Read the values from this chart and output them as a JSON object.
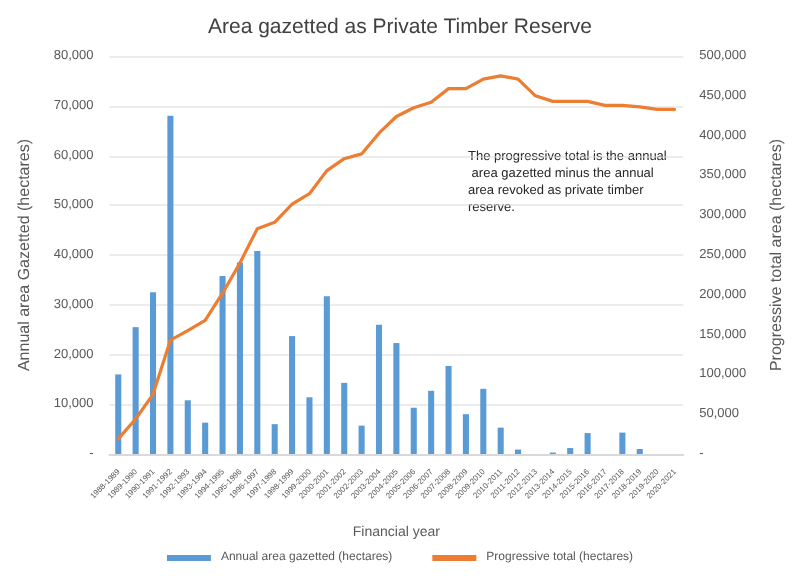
{
  "chart_data": {
    "type": "bar",
    "title": "Area gazetted as Private Timber Reserve",
    "xlabel": "Financial year",
    "ylabel": "Annual area Gazetted (hectares)",
    "y2label": "Progressive total area (hectares)",
    "categories": [
      "1988-1989",
      "1989-1990",
      "1990-1991",
      "1991-1992",
      "1992-1993",
      "1993-1994",
      "1994-1995",
      "1995-1996",
      "1996-1997",
      "1997-1998",
      "1998-1999",
      "1999-2000",
      "2000-2001",
      "2001-2002",
      "2002-2003",
      "2003-2004",
      "2004-2005",
      "2005-2006",
      "2006-2007",
      "2007-2008",
      "2008-2009",
      "2009-2010",
      "2010-2011",
      "2011-2012",
      "2012-2013",
      "2013-2014",
      "2014-2015",
      "2015-2016",
      "2016-2017",
      "2017-2018",
      "2018-2019",
      "2019-2020",
      "2020-2021"
    ],
    "series": [
      {
        "name": "Annual area gazetted (hectares)",
        "color": "#5b9bd5",
        "values": [
          16000,
          25500,
          32500,
          68000,
          10800,
          6300,
          35800,
          38500,
          40800,
          6000,
          23700,
          11400,
          31700,
          14300,
          5700,
          26000,
          22300,
          9300,
          12700,
          17700,
          8000,
          13100,
          5300,
          900,
          0,
          300,
          1200,
          4200,
          0,
          4300,
          1000,
          0,
          0
        ]
      },
      {
        "name": "Progressive total (hectares)",
        "type": "line",
        "axis": "y2",
        "color": "#ed7d31",
        "values": [
          19000,
          44000,
          75000,
          143000,
          155000,
          168000,
          202000,
          240000,
          283000,
          291000,
          314000,
          327000,
          356000,
          371000,
          377000,
          403000,
          424000,
          435000,
          442000,
          459000,
          459000,
          471000,
          475000,
          471000,
          450000,
          443000,
          443000,
          443000,
          438000,
          438000,
          436000,
          433000,
          433000
        ]
      }
    ],
    "ylim": [
      0,
      80000
    ],
    "yticks": [
      {
        "value": 0,
        "label": "-"
      },
      {
        "value": 10000,
        "label": "10,000"
      },
      {
        "value": 20000,
        "label": "20,000"
      },
      {
        "value": 30000,
        "label": "30,000"
      },
      {
        "value": 40000,
        "label": "40,000"
      },
      {
        "value": 50000,
        "label": "50,000"
      },
      {
        "value": 60000,
        "label": "60,000"
      },
      {
        "value": 70000,
        "label": "70,000"
      },
      {
        "value": 80000,
        "label": "80,000"
      }
    ],
    "y2lim": [
      0,
      500000
    ],
    "y2ticks": [
      {
        "value": 0,
        "label": "-"
      },
      {
        "value": 50000,
        "label": "50,000"
      },
      {
        "value": 100000,
        "label": "100,000"
      },
      {
        "value": 150000,
        "label": "150,000"
      },
      {
        "value": 200000,
        "label": "200,000"
      },
      {
        "value": 250000,
        "label": "250,000"
      },
      {
        "value": 300000,
        "label": "300,000"
      },
      {
        "value": 350000,
        "label": "350,000"
      },
      {
        "value": 400000,
        "label": "400,000"
      },
      {
        "value": 450000,
        "label": "450,000"
      },
      {
        "value": 500000,
        "label": "500,000"
      }
    ],
    "grid": "y",
    "legend": "bottom",
    "marker": "none",
    "annotations": [
      "The progressive total is the annual area gazetted minus the annual area revoked as private timber reserve."
    ]
  }
}
